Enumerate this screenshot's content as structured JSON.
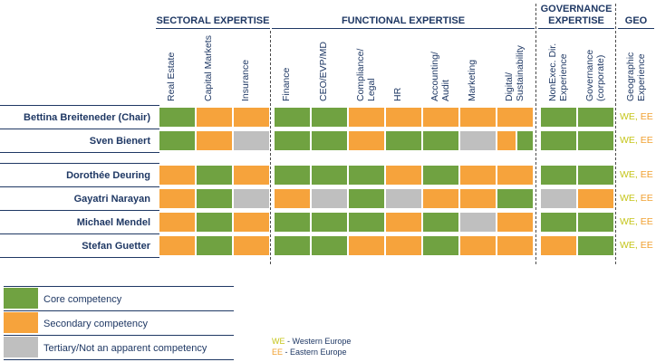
{
  "colors": {
    "core": "#70a241",
    "secondary": "#f6a33c",
    "tertiary": "#bfbfbf",
    "text": "#1f3864",
    "we": "#c5c51a",
    "ee": "#f0a030"
  },
  "groups": {
    "sectoral": "SECTORAL EXPERTISE",
    "functional": "FUNCTIONAL EXPERTISE",
    "governance_line1": "GOVERNANCE",
    "governance_line2": "EXPERTISE",
    "geo": "GEO"
  },
  "columns": [
    "Real Estate",
    "Capital Markets",
    "Insurance",
    "Finance",
    "CEO/EVP/MD",
    "Compliance/ Legal",
    "HR",
    "Accounting/ Audit",
    "Marketing",
    "Digital/ Sustainability",
    "NonExec. Dir. Experience",
    "Governance (corporate)",
    "Geographic Experience"
  ],
  "members": [
    {
      "name": "Bettina Breiteneder (Chair)",
      "cells": [
        "c",
        "s",
        "s",
        "c",
        "c",
        "s",
        "s",
        "s",
        "s",
        "s",
        "c",
        "c"
      ],
      "geo_we": "WE",
      "geo_sep": ", ",
      "geo_ee": "EE"
    },
    {
      "name": "Sven Bienert",
      "cells": [
        "c",
        "s",
        "t",
        "c",
        "c",
        "s",
        "c",
        "c",
        "t",
        "sc",
        "c",
        "c"
      ],
      "geo_we": "WE",
      "geo_sep": ", ",
      "geo_ee": "EE"
    },
    {
      "name": "Dorothée Deuring",
      "cells": [
        "s",
        "c",
        "s",
        "c",
        "c",
        "c",
        "s",
        "c",
        "s",
        "s",
        "c",
        "c"
      ],
      "geo_we": "WE",
      "geo_sep": ", ",
      "geo_ee": "EE"
    },
    {
      "name": "Gayatri Narayan",
      "cells": [
        "s",
        "c",
        "t",
        "s",
        "t",
        "c",
        "t",
        "s",
        "s",
        "c",
        "t",
        "s"
      ],
      "geo_we": "WE",
      "geo_sep": ", ",
      "geo_ee": "EE"
    },
    {
      "name": "Michael Mendel",
      "cells": [
        "s",
        "c",
        "s",
        "c",
        "c",
        "c",
        "s",
        "c",
        "t",
        "s",
        "c",
        "c"
      ],
      "geo_we": "WE",
      "geo_sep": ", ",
      "geo_ee": "EE"
    },
    {
      "name": "Stefan Guetter",
      "cells": [
        "s",
        "c",
        "s",
        "c",
        "c",
        "s",
        "s",
        "c",
        "s",
        "s",
        "s",
        "c"
      ],
      "geo_we": "WE",
      "geo_sep": ", ",
      "geo_ee": "EE"
    }
  ],
  "legend": {
    "core": "Core competency",
    "secondary": "Secondary competency",
    "tertiary": "Tertiary/Not an apparent competency",
    "we_code": "WE",
    "we_text": " - Western Europe",
    "ee_code": "EE",
    "ee_text": " - Eastern Europe"
  }
}
